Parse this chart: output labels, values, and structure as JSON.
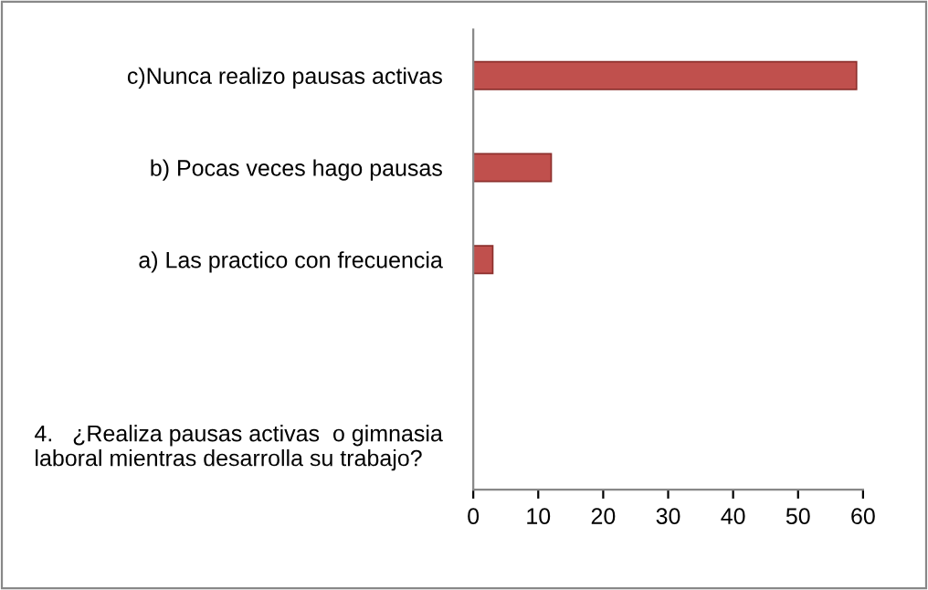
{
  "chart_data": {
    "type": "bar",
    "orientation": "horizontal",
    "categories": [
      "c)Nunca realizo pausas activas",
      "b) Pocas veces hago pausas",
      "a) Las practico con frecuencia",
      null,
      "4.   ¿Realiza pausas activas  o gimnasia\nlaboral mientras desarrolla su trabajo?"
    ],
    "values": [
      59,
      12,
      3,
      null,
      null
    ],
    "color": "#c0504d",
    "xlim": [
      0,
      60
    ],
    "xticks": [
      0,
      10,
      20,
      30,
      40,
      50,
      60
    ],
    "grid": false,
    "legend": false
  }
}
